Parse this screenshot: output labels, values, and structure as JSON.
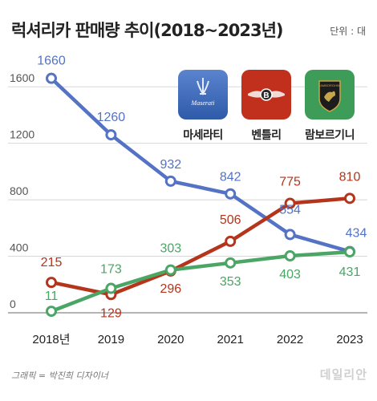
{
  "title": "럭셔리카 판매량 추이(2018~2023년)",
  "unit_note": "단위 : 대",
  "credit": "그래픽 = 박진희 디자이너",
  "watermark": "데일리안",
  "brands": [
    {
      "label": "마세라티",
      "logo_text": "Maserati",
      "color": "#3d6fbd"
    },
    {
      "label": "벤틀리",
      "logo_text": "B",
      "color": "#c0301c"
    },
    {
      "label": "람보르기니",
      "logo_text": "LAMBORGHINI",
      "color": "#3d9c57"
    }
  ],
  "chart_data": {
    "type": "line",
    "categories": [
      "2018년",
      "2019",
      "2020",
      "2021",
      "2022",
      "2023"
    ],
    "ylim": [
      0,
      1800
    ],
    "yticks": [
      0,
      400,
      800,
      1200,
      1600
    ],
    "grid": true,
    "series": [
      {
        "name": "마세라티",
        "color": "#5573c4",
        "values": [
          1660,
          1260,
          932,
          842,
          554,
          434
        ],
        "labels": [
          "1660",
          "1260",
          "932",
          "842",
          "554",
          "434"
        ]
      },
      {
        "name": "벤틀리",
        "color": "#b5341c",
        "values": [
          215,
          129,
          296,
          506,
          775,
          810
        ],
        "labels": [
          "215",
          "129",
          "296",
          "506",
          "775",
          "810"
        ]
      },
      {
        "name": "람보르기니",
        "color": "#4ba565",
        "values": [
          11,
          173,
          303,
          353,
          403,
          431
        ],
        "labels": [
          "11",
          "173",
          "303",
          "353",
          "403",
          "431"
        ]
      }
    ]
  }
}
